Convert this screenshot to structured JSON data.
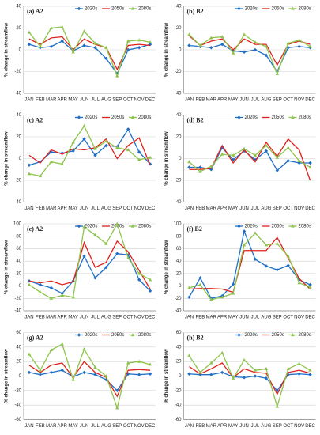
{
  "chart_data": [
    {
      "type": "line",
      "title": "(a) A2",
      "y_label": "% change in streamflow",
      "categories": [
        "JAN",
        "FEB",
        "MAR",
        "APR",
        "MAY",
        "JUN",
        "JUL",
        "AUG",
        "SEP",
        "OCT",
        "NOV",
        "DEC"
      ],
      "ylim": [
        -40,
        40
      ],
      "yticks": [
        -40,
        -20,
        0,
        20,
        40
      ],
      "grid": true,
      "legend": "top-right",
      "series": [
        {
          "name": "2020s",
          "color": "#1f6fc5",
          "marker": "diamond",
          "values": [
            5,
            2,
            3,
            8,
            -1,
            4,
            2,
            -8,
            -22,
            0,
            2,
            5
          ]
        },
        {
          "name": "2050s",
          "color": "#e0201b",
          "marker": "none",
          "values": [
            10,
            5,
            11,
            12,
            0,
            10,
            5,
            2,
            -18,
            4,
            5,
            4
          ]
        },
        {
          "name": "2080s",
          "color": "#8dc44b",
          "marker": "triangle",
          "values": [
            16,
            3,
            20,
            21,
            -2,
            17,
            6,
            2,
            -24,
            8,
            9,
            7
          ]
        }
      ]
    },
    {
      "type": "line",
      "title": "(b) B2",
      "y_label": "% change in streamflow",
      "categories": [
        "JAN",
        "FEB",
        "MAR",
        "APR",
        "MAY",
        "JUN",
        "JUL",
        "AUG",
        "SEP",
        "OCT",
        "NOV",
        "DEC"
      ],
      "ylim": [
        -40,
        40
      ],
      "yticks": [
        -40,
        -20,
        0,
        20,
        40
      ],
      "grid": true,
      "legend": "top-right",
      "series": [
        {
          "name": "2020s",
          "color": "#1f6fc5",
          "marker": "diamond",
          "values": [
            4,
            3,
            2,
            5,
            -1,
            -2,
            0,
            -5,
            -20,
            2,
            3,
            2
          ]
        },
        {
          "name": "2050s",
          "color": "#e0201b",
          "marker": "none",
          "values": [
            13,
            4,
            8,
            10,
            0,
            10,
            5,
            5,
            -14,
            5,
            8,
            5
          ]
        },
        {
          "name": "2080s",
          "color": "#8dc44b",
          "marker": "triangle",
          "values": [
            14,
            4,
            11,
            12,
            -3,
            14,
            7,
            3,
            -22,
            6,
            9,
            3
          ]
        }
      ]
    },
    {
      "type": "line",
      "title": "(c) A2",
      "y_label": "% change in streamflow",
      "categories": [
        "JAN",
        "FEB",
        "MAR",
        "APR",
        "MAY",
        "JUN",
        "JUL",
        "AUG",
        "SEP",
        "OCT",
        "NOV",
        "DEC"
      ],
      "ylim": [
        -40,
        40
      ],
      "yticks": [
        -40,
        -20,
        0,
        20,
        40
      ],
      "grid": true,
      "legend": "top-right",
      "series": [
        {
          "name": "2020s",
          "color": "#1f6fc5",
          "marker": "diamond",
          "values": [
            -6,
            -3,
            6,
            5,
            7,
            18,
            3,
            12,
            11,
            27,
            6,
            -5
          ]
        },
        {
          "name": "2050s",
          "color": "#e0201b",
          "marker": "none",
          "values": [
            3,
            -4,
            8,
            4,
            9,
            8,
            10,
            18,
            0,
            12,
            19,
            -6
          ]
        },
        {
          "name": "2080s",
          "color": "#8dc44b",
          "marker": "triangle",
          "values": [
            -14,
            -16,
            -3,
            -5,
            15,
            30,
            9,
            16,
            10,
            8,
            -1,
            1
          ]
        }
      ]
    },
    {
      "type": "line",
      "title": "(d) B2",
      "y_label": "% change in streamflow",
      "categories": [
        "JAN",
        "FEB",
        "MAR",
        "APR",
        "MAY",
        "JUN",
        "JUL",
        "AUG",
        "SEP",
        "OCT",
        "NOV",
        "DEC"
      ],
      "ylim": [
        -40,
        40
      ],
      "yticks": [
        -40,
        -20,
        0,
        20,
        40
      ],
      "grid": true,
      "legend": "top-right",
      "series": [
        {
          "name": "2020s",
          "color": "#1f6fc5",
          "marker": "diamond",
          "values": [
            -8,
            -8,
            -10,
            10,
            -1,
            7,
            -1,
            7,
            -11,
            -2,
            -4,
            -4
          ]
        },
        {
          "name": "2050s",
          "color": "#e0201b",
          "marker": "none",
          "values": [
            -10,
            -10,
            -9,
            12,
            -4,
            8,
            -3,
            15,
            2,
            18,
            8,
            -20
          ]
        },
        {
          "name": "2080s",
          "color": "#8dc44b",
          "marker": "triangle",
          "values": [
            -3,
            -12,
            -7,
            4,
            3,
            9,
            3,
            12,
            1,
            10,
            -2,
            -8
          ]
        }
      ]
    },
    {
      "type": "line",
      "title": "(e) A2",
      "y_label": "% change in streamflow",
      "categories": [
        "JAN",
        "FEB",
        "MAR",
        "APR",
        "MAY",
        "JUN",
        "JUL",
        "AUG",
        "SEP",
        "OCT",
        "NOV",
        "DEC"
      ],
      "ylim": [
        -40,
        100
      ],
      "yticks": [
        -40,
        -20,
        0,
        20,
        40,
        60,
        80,
        100
      ],
      "grid": true,
      "legend": "top-right",
      "series": [
        {
          "name": "2020s",
          "color": "#1f6fc5",
          "marker": "diamond",
          "values": [
            8,
            2,
            -3,
            -12,
            8,
            48,
            13,
            30,
            52,
            50,
            10,
            -8
          ]
        },
        {
          "name": "2050s",
          "color": "#e0201b",
          "marker": "none",
          "values": [
            8,
            5,
            8,
            2,
            7,
            70,
            30,
            38,
            72,
            55,
            25,
            -5
          ]
        },
        {
          "name": "2080s",
          "color": "#8dc44b",
          "marker": "triangle",
          "values": [
            2,
            -10,
            -20,
            -15,
            -18,
            95,
            82,
            68,
            100,
            45,
            20,
            10
          ]
        }
      ]
    },
    {
      "type": "line",
      "title": "(f) B2",
      "y_label": "% change in streamflow",
      "categories": [
        "JAN",
        "FEB",
        "MAR",
        "APR",
        "MAY",
        "JUN",
        "JUL",
        "AUG",
        "SEP",
        "OCT",
        "NOV",
        "DEC"
      ],
      "ylim": [
        -40,
        100
      ],
      "yticks": [
        -40,
        -20,
        0,
        20,
        40,
        60,
        80,
        100
      ],
      "grid": true,
      "legend": "top-right",
      "series": [
        {
          "name": "2020s",
          "color": "#1f6fc5",
          "marker": "diamond",
          "values": [
            -18,
            13,
            -20,
            -16,
            3,
            88,
            43,
            32,
            26,
            33,
            10,
            2
          ]
        },
        {
          "name": "2050s",
          "color": "#e0201b",
          "marker": "none",
          "values": [
            -5,
            -4,
            -4,
            -5,
            -10,
            57,
            57,
            57,
            78,
            45,
            12,
            -5
          ]
        },
        {
          "name": "2080s",
          "color": "#8dc44b",
          "marker": "triangle",
          "values": [
            -3,
            2,
            -22,
            -18,
            -12,
            66,
            85,
            66,
            68,
            48,
            5,
            -2
          ]
        }
      ]
    },
    {
      "type": "line",
      "title": "(g) A2",
      "y_label": "% change in streamflow",
      "categories": [
        "JAN",
        "FEB",
        "MAR",
        "APR",
        "MAY",
        "JUN",
        "JUL",
        "AUG",
        "SEP",
        "OCT",
        "NOV",
        "DEC"
      ],
      "ylim": [
        -60,
        60
      ],
      "yticks": [
        -60,
        -40,
        -20,
        0,
        20,
        40,
        60
      ],
      "grid": true,
      "legend": "top-right",
      "series": [
        {
          "name": "2020s",
          "color": "#1f6fc5",
          "marker": "diamond",
          "values": [
            5,
            2,
            5,
            8,
            -1,
            5,
            2,
            -5,
            -20,
            3,
            2,
            3
          ]
        },
        {
          "name": "2050s",
          "color": "#e0201b",
          "marker": "none",
          "values": [
            15,
            5,
            15,
            18,
            -2,
            20,
            5,
            -2,
            -28,
            8,
            9,
            8
          ]
        },
        {
          "name": "2080s",
          "color": "#8dc44b",
          "marker": "triangle",
          "values": [
            30,
            8,
            36,
            44,
            -5,
            37,
            12,
            0,
            -44,
            18,
            20,
            16
          ]
        }
      ]
    },
    {
      "type": "line",
      "title": "(h) B2",
      "y_label": "% change in streamflow",
      "categories": [
        "JAN",
        "FEB",
        "MAR",
        "APR",
        "MAY",
        "JUN",
        "JUL",
        "AUG",
        "SEP",
        "OCT",
        "NOV",
        "DEC"
      ],
      "ylim": [
        -60,
        60
      ],
      "yticks": [
        -60,
        -40,
        -20,
        0,
        20,
        40,
        60
      ],
      "grid": true,
      "legend": "top-right",
      "series": [
        {
          "name": "2020s",
          "color": "#1f6fc5",
          "marker": "diamond",
          "values": [
            3,
            2,
            2,
            5,
            -1,
            -2,
            0,
            -3,
            -20,
            2,
            3,
            2
          ]
        },
        {
          "name": "2050s",
          "color": "#e0201b",
          "marker": "none",
          "values": [
            13,
            3,
            10,
            18,
            -2,
            10,
            5,
            4,
            -25,
            5,
            8,
            4
          ]
        },
        {
          "name": "2080s",
          "color": "#8dc44b",
          "marker": "triangle",
          "values": [
            28,
            5,
            18,
            32,
            -3,
            22,
            8,
            10,
            -42,
            10,
            17,
            8
          ]
        }
      ]
    }
  ]
}
